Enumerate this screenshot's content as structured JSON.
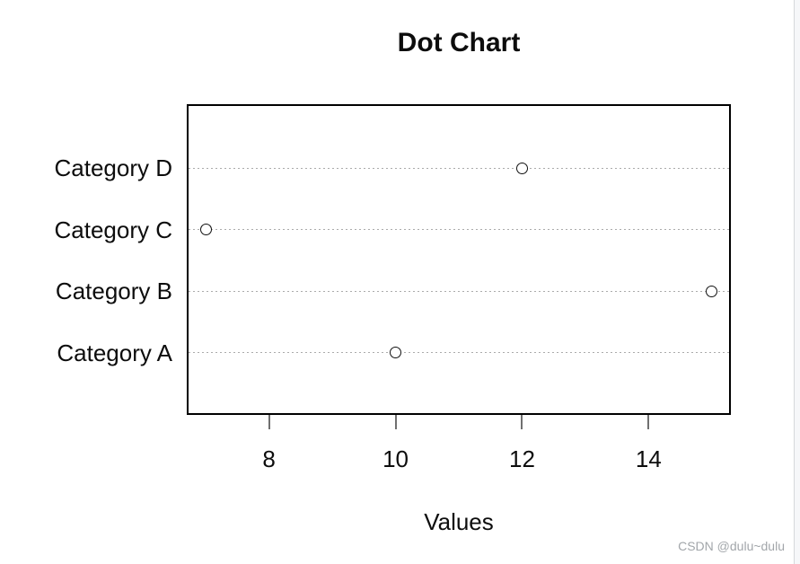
{
  "chart_data": {
    "type": "scatter",
    "variant": "dotchart",
    "title": "Dot Chart",
    "xlabel": "Values",
    "ylabel": "",
    "categories": [
      "Category A",
      "Category B",
      "Category C",
      "Category D"
    ],
    "values": [
      10,
      15,
      7,
      12
    ],
    "category_order_top_to_bottom": [
      "Category D",
      "Category C",
      "Category B",
      "Category A"
    ],
    "xticks": [
      8,
      10,
      12,
      14
    ],
    "xlim": [
      6.7,
      15.3
    ],
    "grid": "horizontal dotted line per category",
    "legend": "none",
    "point_style": "open circle",
    "colors": {
      "point_stroke": "#111111",
      "grid": "#ababab",
      "box": "#000000",
      "tick": "#707070",
      "text": "#0d0d0d"
    }
  },
  "watermark": {
    "text": "CSDN @dulu~dulu"
  }
}
